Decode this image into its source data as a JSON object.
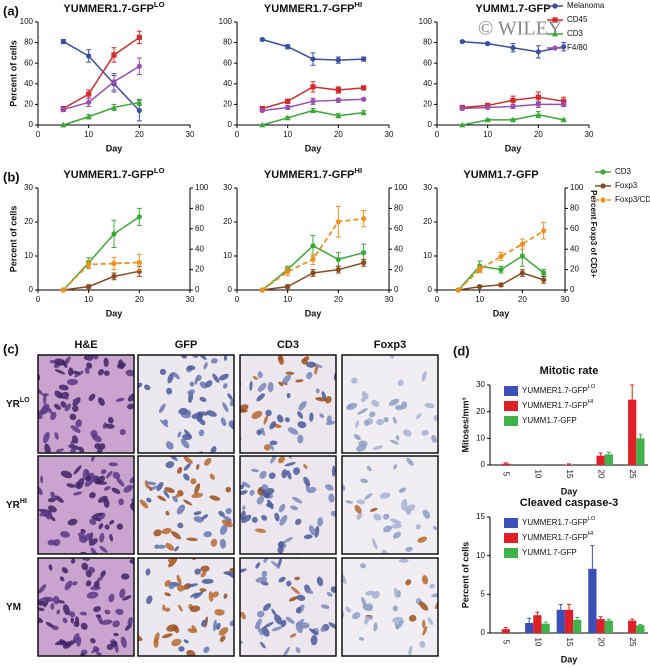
{
  "panel_labels": [
    "(a)",
    "(b)",
    "(c)",
    "(d)"
  ],
  "watermark": "© WILEY",
  "chart_data": [
    {
      "type": "line",
      "title": "YUMMER1.7-GFP",
      "title_sup": "LO",
      "xlabel": "Day",
      "ylabel": "Percent of cells",
      "x": [
        5,
        10,
        15,
        20
      ],
      "xlim": [
        0,
        30
      ],
      "xticks": [
        0,
        10,
        20,
        30
      ],
      "ylim": [
        0,
        100
      ],
      "yticks": [
        0,
        20,
        40,
        60,
        80,
        100
      ],
      "series": [
        {
          "name": "Melanoma",
          "color": "#3b4fa3",
          "marker": "circle",
          "values": [
            81,
            67,
            40,
            14
          ],
          "errors": [
            2,
            6,
            8,
            10
          ]
        },
        {
          "name": "CD45",
          "color": "#d42a2a",
          "marker": "square",
          "values": [
            16,
            30,
            68,
            85
          ],
          "errors": [
            2,
            4,
            7,
            6
          ]
        },
        {
          "name": "CD3",
          "color": "#3aa935",
          "marker": "triangle",
          "values": [
            0,
            8,
            17,
            22
          ],
          "errors": [
            0,
            2,
            3,
            3
          ]
        },
        {
          "name": "F4/80",
          "color": "#9b4fb0",
          "marker": "circle",
          "values": [
            15,
            22,
            42,
            57
          ],
          "errors": [
            2,
            4,
            8,
            8
          ]
        }
      ]
    },
    {
      "type": "line",
      "title": "YUMMER1.7-GFP",
      "title_sup": "HI",
      "xlabel": "Day",
      "x": [
        5,
        10,
        15,
        20,
        25
      ],
      "xlim": [
        0,
        30
      ],
      "xticks": [
        0,
        10,
        20,
        30
      ],
      "ylim": [
        0,
        100
      ],
      "yticks": [
        0,
        20,
        40,
        60,
        80,
        100
      ],
      "series": [
        {
          "name": "Melanoma",
          "color": "#3b4fa3",
          "marker": "circle",
          "values": [
            83,
            76,
            64,
            63,
            64
          ],
          "errors": [
            1,
            2,
            6,
            3,
            2
          ]
        },
        {
          "name": "CD45",
          "color": "#d42a2a",
          "marker": "square",
          "values": [
            16,
            23,
            37,
            34,
            36
          ],
          "errors": [
            1,
            2,
            5,
            3,
            2
          ]
        },
        {
          "name": "CD3",
          "color": "#3aa935",
          "marker": "triangle",
          "values": [
            0,
            7,
            14,
            9,
            12
          ],
          "errors": [
            0,
            1,
            2,
            2,
            2
          ]
        },
        {
          "name": "F4/80",
          "color": "#9b4fb0",
          "marker": "circle",
          "values": [
            14,
            17,
            23,
            24,
            25
          ],
          "errors": [
            1,
            2,
            3,
            2,
            1
          ]
        }
      ]
    },
    {
      "type": "line",
      "title": "YUMM1.7-GFP",
      "xlabel": "Day",
      "legend": "right",
      "x": [
        5,
        10,
        15,
        20,
        25
      ],
      "xlim": [
        0,
        30
      ],
      "xticks": [
        0,
        10,
        20,
        30
      ],
      "ylim": [
        0,
        100
      ],
      "yticks": [
        0,
        20,
        40,
        60,
        80,
        100
      ],
      "series": [
        {
          "name": "Melanoma",
          "color": "#3b4fa3",
          "marker": "circle",
          "values": [
            81,
            79,
            75,
            71,
            76
          ],
          "errors": [
            1,
            1,
            4,
            6,
            4
          ]
        },
        {
          "name": "CD45",
          "color": "#d42a2a",
          "marker": "square",
          "values": [
            17,
            19,
            24,
            27,
            23
          ],
          "errors": [
            1,
            2,
            4,
            5,
            4
          ]
        },
        {
          "name": "CD3",
          "color": "#3aa935",
          "marker": "triangle",
          "values": [
            0,
            5,
            5,
            10,
            5
          ],
          "errors": [
            0,
            1,
            1,
            3,
            1
          ]
        },
        {
          "name": "F4/80",
          "color": "#9b4fb0",
          "marker": "circle",
          "values": [
            16,
            17,
            18,
            20,
            20
          ],
          "errors": [
            1,
            1,
            2,
            3,
            2
          ]
        }
      ]
    },
    {
      "type": "line",
      "title": "YUMMER1.7-GFP",
      "title_sup": "LO",
      "xlabel": "Day",
      "ylabel": "Percent of cells",
      "x": [
        5,
        10,
        15,
        20
      ],
      "xlim": [
        0,
        30
      ],
      "xticks": [
        0,
        10,
        20,
        30
      ],
      "ylim": [
        0,
        30
      ],
      "yticks": [
        0,
        10,
        20,
        30
      ],
      "y2lim": [
        0,
        100
      ],
      "y2ticks": [
        0,
        20,
        40,
        60,
        80,
        100
      ],
      "series": [
        {
          "name": "CD3",
          "color": "#3aa935",
          "marker": "circle",
          "values": [
            0,
            8,
            16.5,
            21.5
          ],
          "errors": [
            0,
            1.5,
            4,
            2.5
          ]
        },
        {
          "name": "Foxp3",
          "color": "#8b4a1e",
          "marker": "circle",
          "values": [
            0,
            1,
            4,
            5.5
          ],
          "errors": [
            0,
            0.5,
            1,
            1.5
          ]
        },
        {
          "name": "Foxp3/CD3",
          "color": "#f0901e",
          "marker": "circle",
          "dashed": true,
          "axis": "y2",
          "values": [
            0,
            25,
            26,
            27
          ],
          "errors": [
            0,
            4,
            6,
            8
          ]
        }
      ]
    },
    {
      "type": "line",
      "title": "YUMMER1.7-GFP",
      "title_sup": "HI",
      "xlabel": "Day",
      "x": [
        5,
        10,
        15,
        20,
        25
      ],
      "xlim": [
        0,
        30
      ],
      "xticks": [
        0,
        10,
        20,
        30
      ],
      "ylim": [
        0,
        30
      ],
      "yticks": [
        0,
        10,
        20,
        30
      ],
      "y2lim": [
        0,
        100
      ],
      "y2ticks": [
        0,
        20,
        40,
        60,
        80,
        100
      ],
      "series": [
        {
          "name": "CD3",
          "color": "#3aa935",
          "marker": "circle",
          "values": [
            0,
            6,
            13,
            9,
            11
          ],
          "errors": [
            0,
            1,
            3,
            2,
            2.5
          ]
        },
        {
          "name": "Foxp3",
          "color": "#8b4a1e",
          "marker": "circle",
          "values": [
            0,
            1,
            5,
            6,
            8
          ],
          "errors": [
            0,
            0.5,
            1,
            1,
            1
          ]
        },
        {
          "name": "Foxp3/CD3",
          "color": "#f0901e",
          "marker": "circle",
          "dashed": true,
          "axis": "y2",
          "values": [
            0,
            18,
            30,
            67,
            70
          ],
          "errors": [
            0,
            4,
            5,
            15,
            8
          ]
        }
      ]
    },
    {
      "type": "line",
      "title": "YUMM1.7-GFP",
      "xlabel": "Day",
      "y2label": "Percent Foxp3 of CD3+",
      "legend": "right",
      "x": [
        5,
        10,
        15,
        20,
        25
      ],
      "xlim": [
        0,
        30
      ],
      "xticks": [
        0,
        10,
        20,
        30
      ],
      "ylim": [
        0,
        30
      ],
      "yticks": [
        0,
        10,
        20,
        30
      ],
      "y2lim": [
        0,
        100
      ],
      "y2ticks": [
        0,
        20,
        40,
        60,
        80,
        100
      ],
      "series": [
        {
          "name": "CD3",
          "color": "#3aa935",
          "marker": "circle",
          "values": [
            0,
            7,
            6,
            10,
            5
          ],
          "errors": [
            0,
            1.5,
            1,
            3,
            1
          ]
        },
        {
          "name": "Foxp3",
          "color": "#8b4a1e",
          "marker": "circle",
          "values": [
            0,
            1,
            1.5,
            5,
            3
          ],
          "errors": [
            0,
            0.3,
            0.5,
            1,
            1
          ]
        },
        {
          "name": "Foxp3/CD3",
          "color": "#f0901e",
          "marker": "circle",
          "dashed": true,
          "axis": "y2",
          "values": [
            0,
            20,
            33,
            45,
            58
          ],
          "errors": [
            0,
            3,
            4,
            5,
            8
          ]
        }
      ]
    },
    {
      "type": "bar",
      "title": "Mitotic rate",
      "xlabel": "Day",
      "ylabel": "Mitoses/mm³",
      "legend": "upper left",
      "categories": [
        "5",
        "10",
        "15",
        "20",
        "25"
      ],
      "ylim": [
        0,
        30
      ],
      "yticks": [
        0,
        10,
        20,
        30
      ],
      "series": [
        {
          "name": "YUMMER1.7-GFP",
          "name_sup": "LO",
          "color": "#3b4fb8",
          "values": [
            0,
            0,
            0,
            0,
            null
          ],
          "errors": [
            null,
            null,
            null,
            null,
            null
          ]
        },
        {
          "name": "YUMMER1.7-GFP",
          "name_sup": "HI",
          "color": "#e01f26",
          "values": [
            0.5,
            0,
            0.2,
            3.5,
            24.5
          ],
          "errors": [
            0.3,
            null,
            0.2,
            1,
            5.5
          ]
        },
        {
          "name": "YUMM1.7-GFP",
          "color": "#3fb34a",
          "values": [
            0,
            0,
            0,
            4,
            10
          ],
          "errors": [
            null,
            null,
            null,
            0.8,
            1.5
          ]
        }
      ]
    },
    {
      "type": "bar",
      "title": "Cleaved caspase-3",
      "xlabel": "Day",
      "ylabel": "Percent of cells",
      "legend": "upper left",
      "categories": [
        "5",
        "10",
        "15",
        "20",
        "25"
      ],
      "ylim": [
        0,
        15
      ],
      "yticks": [
        0,
        5,
        10,
        15
      ],
      "series": [
        {
          "name": "YUMMER1.7-GFP",
          "name_sup": "LO",
          "color": "#3b4fb8",
          "values": [
            null,
            1.3,
            3,
            8.3,
            null
          ],
          "errors": [
            null,
            0.6,
            0.7,
            3,
            null
          ]
        },
        {
          "name": "YUMMER1.7-GFP",
          "name_sup": "HI",
          "color": "#e01f26",
          "values": [
            0.5,
            2.3,
            3,
            1.8,
            1.6
          ],
          "errors": [
            0.2,
            0.4,
            0.7,
            0.3,
            0.2
          ]
        },
        {
          "name": "YUMM1.7-GFP",
          "color": "#3fb34a",
          "values": [
            null,
            1.2,
            1.7,
            1.6,
            1
          ],
          "errors": [
            null,
            0.2,
            0.3,
            0.2,
            0.1
          ]
        }
      ]
    }
  ],
  "micrographs": {
    "columns": [
      "H&E",
      "GFP",
      "CD3",
      "Foxp3"
    ],
    "rows": [
      {
        "label": "YR",
        "sup": "LO"
      },
      {
        "label": "YR",
        "sup": "HI"
      },
      {
        "label": "YM"
      }
    ]
  }
}
